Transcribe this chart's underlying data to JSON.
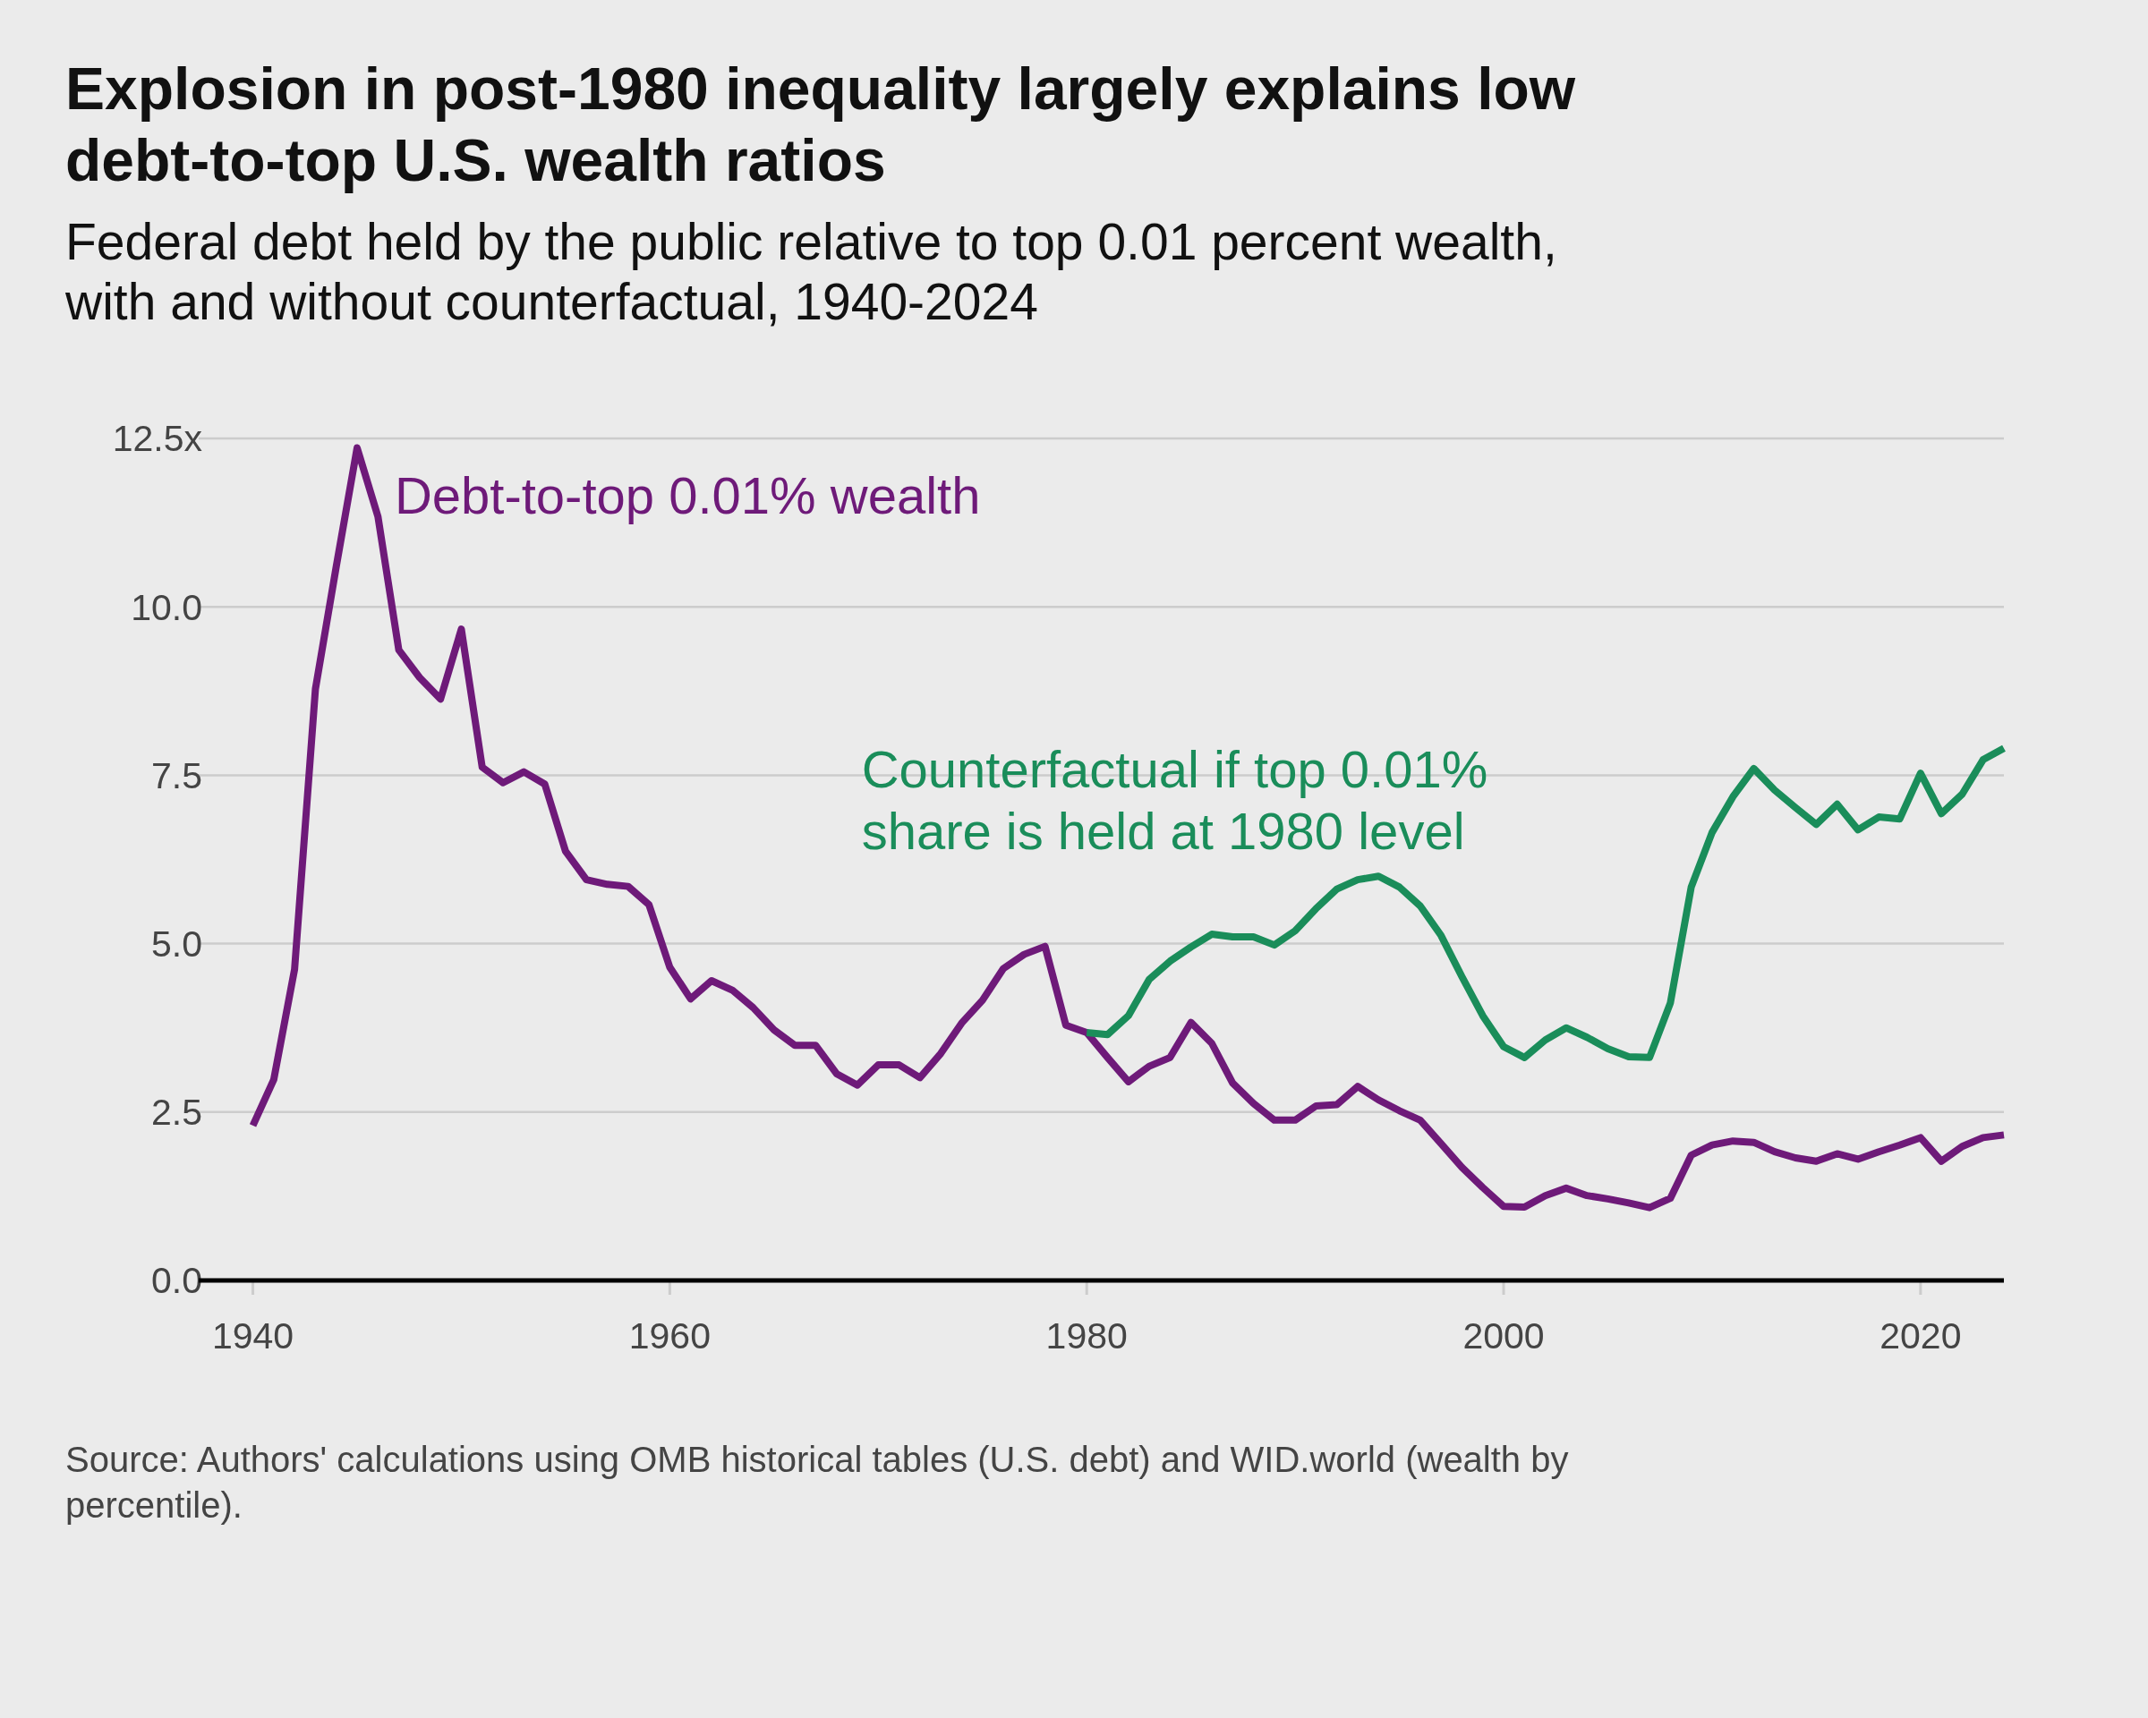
{
  "chart_data": {
    "type": "line",
    "title": "Explosion in post-1980 inequality largely explains low debt-to-top U.S. wealth ratios",
    "subtitle": "Federal debt held by the public relative to top 0.01 percent wealth, with and without counterfactual, 1940-2024",
    "x": [
      1940,
      1941,
      1942,
      1943,
      1944,
      1945,
      1946,
      1947,
      1948,
      1949,
      1950,
      1951,
      1952,
      1953,
      1954,
      1955,
      1956,
      1957,
      1958,
      1959,
      1960,
      1961,
      1962,
      1963,
      1964,
      1965,
      1966,
      1967,
      1968,
      1969,
      1970,
      1971,
      1972,
      1973,
      1974,
      1975,
      1976,
      1977,
      1978,
      1979,
      1980,
      1981,
      1982,
      1983,
      1984,
      1985,
      1986,
      1987,
      1988,
      1989,
      1990,
      1991,
      1992,
      1993,
      1994,
      1995,
      1996,
      1997,
      1998,
      1999,
      2000,
      2001,
      2002,
      2003,
      2004,
      2005,
      2006,
      2007,
      2008,
      2009,
      2010,
      2011,
      2012,
      2013,
      2014,
      2015,
      2016,
      2017,
      2018,
      2019,
      2020,
      2021,
      2022,
      2023,
      2024
    ],
    "series": [
      {
        "name": "Debt-to-top 0.01% wealth",
        "color": "#6e1a79",
        "values": [
          2.3,
          2.98,
          4.62,
          8.78,
          10.6,
          12.36,
          11.34,
          9.36,
          8.95,
          8.63,
          9.67,
          7.62,
          7.39,
          7.55,
          7.37,
          6.37,
          5.95,
          5.88,
          5.85,
          5.58,
          4.65,
          4.18,
          4.45,
          4.31,
          4.05,
          3.72,
          3.49,
          3.49,
          3.07,
          2.9,
          3.2,
          3.2,
          3.01,
          3.37,
          3.82,
          4.16,
          4.63,
          4.84,
          4.96,
          3.79,
          3.68,
          3.31,
          2.95,
          3.18,
          3.31,
          3.83,
          3.52,
          2.93,
          2.63,
          2.38,
          2.38,
          2.59,
          2.61,
          2.88,
          2.68,
          2.52,
          2.38,
          2.03,
          1.68,
          1.38,
          1.1,
          1.09,
          1.26,
          1.37,
          1.26,
          1.21,
          1.15,
          1.08,
          1.22,
          1.86,
          2.01,
          2.07,
          2.05,
          1.91,
          1.82,
          1.77,
          1.88,
          1.8,
          1.91,
          2.01,
          2.12,
          1.77,
          1.99,
          2.12,
          2.16
        ]
      },
      {
        "name": "Counterfactual if top 0.01% share is held at 1980 level",
        "color": "#1a8d5a",
        "x": [
          1980,
          1981,
          1982,
          1983,
          1984,
          1985,
          1986,
          1987,
          1988,
          1989,
          1990,
          1991,
          1992,
          1993,
          1994,
          1995,
          1996,
          1997,
          1998,
          1999,
          2000,
          2001,
          2002,
          2003,
          2004,
          2005,
          2006,
          2007,
          2008,
          2009,
          2010,
          2011,
          2012,
          2013,
          2014,
          2015,
          2016,
          2017,
          2018,
          2019,
          2020,
          2021,
          2022,
          2023,
          2024
        ],
        "values": [
          3.68,
          3.65,
          3.93,
          4.47,
          4.74,
          4.95,
          5.14,
          5.1,
          5.1,
          4.98,
          5.19,
          5.52,
          5.81,
          5.95,
          6.0,
          5.84,
          5.56,
          5.12,
          4.51,
          3.93,
          3.47,
          3.31,
          3.57,
          3.75,
          3.61,
          3.44,
          3.32,
          3.31,
          4.12,
          5.84,
          6.65,
          7.18,
          7.6,
          7.28,
          7.02,
          6.77,
          7.07,
          6.69,
          6.88,
          6.85,
          7.53,
          6.93,
          7.22,
          7.73,
          7.9
        ]
      }
    ],
    "xlim": [
      1937.4,
      2024
    ],
    "xticks": [
      1940,
      1960,
      1980,
      2000,
      2020
    ],
    "ylim": [
      0,
      12.5
    ],
    "yticks": [
      {
        "value": 0,
        "label": "0.0"
      },
      {
        "value": 2.5,
        "label": "2.5"
      },
      {
        "value": 5,
        "label": "5.0"
      },
      {
        "value": 7.5,
        "label": "7.5"
      },
      {
        "value": 10,
        "label": "10.0"
      },
      {
        "value": 12.5,
        "label": "12.5x"
      }
    ],
    "grid": "y",
    "annotations": [
      "Source: Authors' calculations using OMB historical tables (U.S. debt) and WID.world (wealth by percentile)."
    ]
  }
}
